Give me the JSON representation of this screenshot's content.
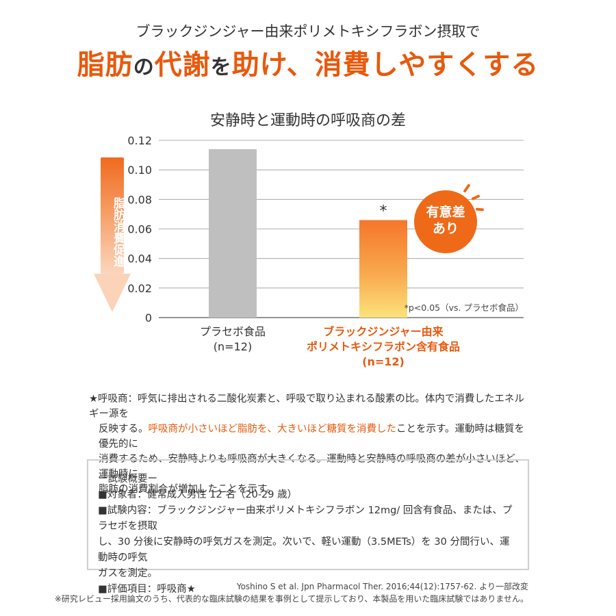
{
  "header": {
    "subtitle": "ブラックジンジャー由来ポリメトキシフラボン摂取で",
    "headline_parts": [
      "脂肪",
      "の",
      "代謝",
      "を",
      "助け、消費しやすくする"
    ]
  },
  "side_label": "脂肪消費促進",
  "badge": {
    "line1": "有意差",
    "line2": "あり"
  },
  "chart_data": {
    "type": "bar",
    "title": "安静時と運動時の呼吸商の差",
    "xlabel": "",
    "ylabel": "",
    "ylim": [
      0,
      0.12
    ],
    "yticks": [
      "0",
      "0.02",
      "0.04",
      "0.06",
      "0.08",
      "0.10",
      "0.12"
    ],
    "categories": [
      {
        "line1": "プラセボ食品",
        "line2": "(n=12)",
        "line3": ""
      },
      {
        "line1": "ブラックジンジャー由来",
        "line2": "ポリメトキシフラボン含有食品",
        "line3": "(n=12)"
      }
    ],
    "values": [
      0.114,
      0.066
    ],
    "colors": [
      "#bfbfbf",
      "#f5822e"
    ],
    "significance_mark": "*",
    "significance_note": "*p<0.05（vs. プラセボ食品）"
  },
  "footnote": {
    "line1": "★呼吸商：呼気に排出される二酸化炭素と、呼吸で取り込まれる酸素の比。体内で消費したエネルギー源を",
    "line2_pre": "反映する。",
    "line2_hl": "呼吸商が小さいほど脂肪を、大きいほど糖質を消費した",
    "line2_post": "ことを示す。運動時は糖質を優先的に",
    "line3": "消費するため、安静時よりも呼吸商が大きくなる。運動時と安静時の呼吸商の差が小さいほど、運動時に",
    "line4": "脂肪の消費割合が増加したことを示す。"
  },
  "summary": {
    "heading": "ー試験概要ー",
    "subjects": "■対象者：健常成人男性 12 名（20-29 歳）",
    "content1": "■試験内容：ブラックジンジャー由来ポリメトキシフラボン 12mg/ 回含有食品、または、プラセボを摂取",
    "content2": "し、30 分後に安静時の呼気ガスを測定。次いで、軽い運動（3.5METs）を 30 分間行い、運動時の呼気",
    "content3": "ガスを測定。",
    "evaluation": "■評価項目：呼吸商★"
  },
  "citation": "Yoshino S et al. Jpn Pharmacol Ther. 2016;44(12):1757-62. より一部改変",
  "disclaimer": "※研究レビュー採用論文のうち、代表的な臨床試験の結果を事例として提示しており、本製品を用いた臨床試験ではありません。"
}
